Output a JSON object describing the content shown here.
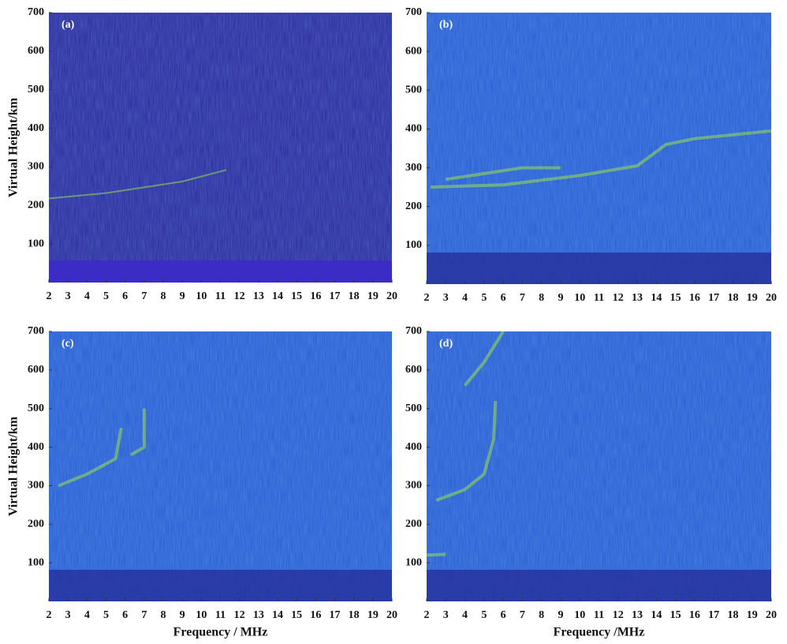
{
  "chart_data": [
    {
      "type": "ionogram",
      "label": "(a)",
      "y_label": "Virtual Height/km",
      "xlim": [
        2,
        20
      ],
      "xticks": [
        2,
        3,
        4,
        5,
        6,
        7,
        8,
        9,
        10,
        11,
        12,
        13,
        14,
        15,
        16,
        17,
        18,
        19,
        20
      ],
      "ylim": [
        0,
        700
      ],
      "yticks": [
        100,
        200,
        300,
        400,
        500,
        600,
        700
      ],
      "color": "#3131a3"
    },
    {
      "type": "ionogram",
      "label": "(b)",
      "xlim": [
        2,
        20
      ],
      "xticks": [
        2,
        3,
        4,
        5,
        6,
        7,
        8,
        9,
        10,
        11,
        12,
        13,
        14,
        15,
        16,
        17,
        18,
        19,
        20
      ],
      "ylim": [
        0,
        700
      ],
      "yticks": [
        100,
        200,
        300,
        400,
        500,
        600,
        700
      ],
      "color": "#2f62d6"
    },
    {
      "type": "ionogram",
      "label": "(c)",
      "y_label": "Virtual Height/km",
      "x_label": "Frequency / MHz",
      "xlim": [
        2,
        20
      ],
      "xticks": [
        2,
        3,
        4,
        5,
        6,
        7,
        8,
        9,
        10,
        11,
        12,
        13,
        14,
        15,
        16,
        17,
        18,
        19,
        20
      ],
      "ylim": [
        0,
        700
      ],
      "yticks": [
        100,
        200,
        300,
        400,
        500,
        600,
        700
      ],
      "color": "#2f62d6"
    },
    {
      "type": "ionogram",
      "label": "(d)",
      "x_label": "Frequency /MHz",
      "xlim": [
        2,
        20
      ],
      "xticks": [
        2,
        3,
        4,
        5,
        6,
        7,
        8,
        9,
        10,
        11,
        12,
        13,
        14,
        15,
        16,
        17,
        18,
        19,
        20
      ],
      "ylim": [
        0,
        700
      ],
      "yticks": [
        100,
        200,
        300,
        400,
        500,
        600,
        700
      ],
      "color": "#2f62d6"
    }
  ]
}
